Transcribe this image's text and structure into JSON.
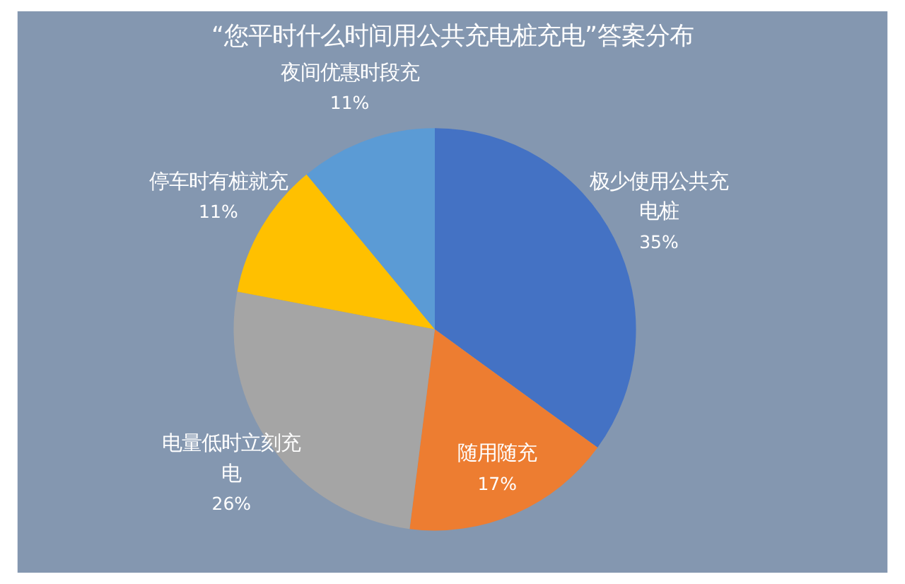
{
  "chart_data": {
    "type": "pie",
    "title": "“您平时什么时间用公共充电桩充电”答案分布",
    "categories": [
      "极少使用公共充电桩",
      "随用随充",
      "电量低时立刻充电",
      "停车时有桩就充",
      "夜间优惠时段充"
    ],
    "values": [
      35,
      17,
      26,
      11,
      11
    ],
    "colors": [
      "#4472c4",
      "#ed7d31",
      "#a5a5a5",
      "#ffc000",
      "#5b9bd5"
    ],
    "value_labels": [
      "35%",
      "17%",
      "26%",
      "11%",
      "11%"
    ]
  }
}
